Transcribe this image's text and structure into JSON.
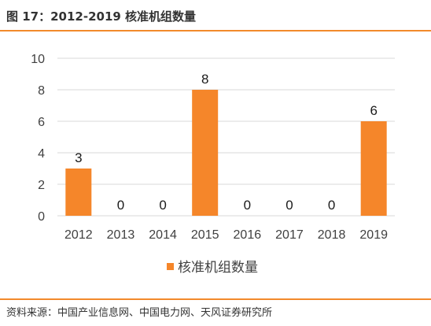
{
  "figure": {
    "title": "图 17：2012-2019 核准机组数量",
    "source": "资料来源：中国产业信息网、中国电力网、天风证券研究所"
  },
  "colors": {
    "accent": "#F28A2B",
    "bar": "#F5862A",
    "grid": "#D9D9D9"
  },
  "chart_data": {
    "type": "bar",
    "categories": [
      "2012",
      "2013",
      "2014",
      "2015",
      "2016",
      "2017",
      "2018",
      "2019"
    ],
    "series": [
      {
        "name": "核准机组数量",
        "values": [
          3,
          0,
          0,
          8,
          0,
          0,
          0,
          6
        ]
      }
    ],
    "ylim": [
      0,
      10
    ],
    "yticks": [
      0,
      2,
      4,
      6,
      8,
      10
    ],
    "grid": true,
    "legend": "bottom",
    "data_labels": true,
    "title": "",
    "xlabel": "",
    "ylabel": ""
  }
}
